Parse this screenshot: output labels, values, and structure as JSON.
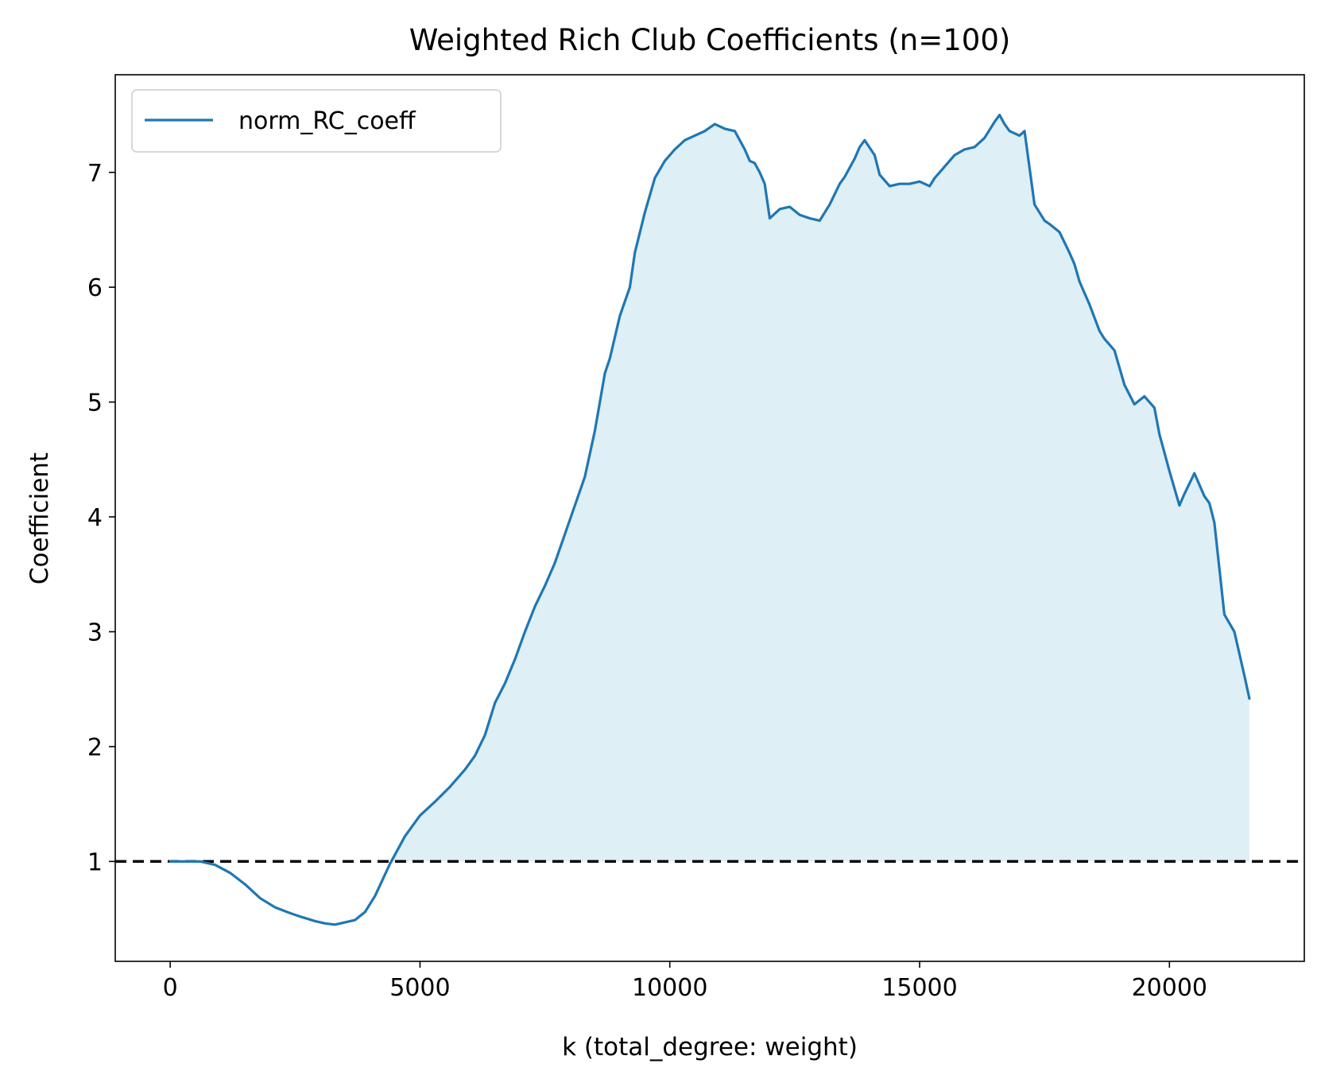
{
  "chart_data": {
    "type": "area",
    "title": "Weighted Rich Club Coefficients (n=100)",
    "xlabel": "k (total_degree: weight)",
    "ylabel": "Coefficient",
    "xlim": [
      -1100,
      22700
    ],
    "ylim": [
      0.13,
      7.85
    ],
    "xticks": [
      0,
      5000,
      10000,
      15000,
      20000
    ],
    "yticks": [
      1,
      2,
      3,
      4,
      5,
      6,
      7
    ],
    "grid": false,
    "legend": {
      "placement": "top-left",
      "entries": [
        "norm_RC_coeff"
      ]
    },
    "colors": {
      "line": "#1f77b4",
      "fill": "#add8e6",
      "reference_line": "#000000"
    },
    "reference_line": {
      "y": 1,
      "style": "dashed"
    },
    "series": [
      {
        "name": "norm_RC_coeff",
        "x": [
          0,
          300,
          600,
          900,
          1200,
          1500,
          1800,
          2100,
          2400,
          2600,
          2900,
          3100,
          3300,
          3500,
          3700,
          3900,
          4100,
          4400,
          4700,
          5000,
          5300,
          5600,
          5900,
          6100,
          6300,
          6500,
          6700,
          6900,
          7100,
          7300,
          7500,
          7700,
          7900,
          8100,
          8300,
          8500,
          8600,
          8700,
          8800,
          9000,
          9200,
          9300,
          9500,
          9700,
          9900,
          10100,
          10300,
          10500,
          10700,
          10900,
          11100,
          11300,
          11500,
          11600,
          11700,
          11800,
          11900,
          12000,
          12200,
          12400,
          12600,
          12800,
          13000,
          13200,
          13400,
          13500,
          13700,
          13800,
          13900,
          14100,
          14200,
          14400,
          14600,
          14800,
          15000,
          15200,
          15300,
          15500,
          15700,
          15900,
          16100,
          16300,
          16500,
          16600,
          16700,
          16800,
          17000,
          17100,
          17300,
          17500,
          17600,
          17800,
          18000,
          18100,
          18200,
          18400,
          18600,
          18700,
          18900,
          19100,
          19300,
          19500,
          19700,
          19800,
          20000,
          20200,
          20300,
          20500,
          20700,
          20800,
          20900,
          21100,
          21300,
          21500,
          21600
        ],
        "values": [
          1.0,
          1.0,
          1.0,
          0.97,
          0.9,
          0.8,
          0.68,
          0.6,
          0.55,
          0.52,
          0.48,
          0.46,
          0.45,
          0.47,
          0.49,
          0.56,
          0.7,
          0.98,
          1.22,
          1.4,
          1.52,
          1.65,
          1.8,
          1.92,
          2.1,
          2.38,
          2.55,
          2.76,
          3.0,
          3.22,
          3.4,
          3.6,
          3.85,
          4.1,
          4.35,
          4.75,
          5.0,
          5.25,
          5.38,
          5.75,
          6.0,
          6.3,
          6.65,
          6.95,
          7.1,
          7.2,
          7.28,
          7.32,
          7.36,
          7.42,
          7.38,
          7.36,
          7.2,
          7.1,
          7.08,
          7.0,
          6.9,
          6.6,
          6.68,
          6.7,
          6.63,
          6.6,
          6.58,
          6.72,
          6.9,
          6.96,
          7.12,
          7.22,
          7.28,
          7.15,
          6.98,
          6.88,
          6.9,
          6.9,
          6.92,
          6.88,
          6.95,
          7.05,
          7.15,
          7.2,
          7.22,
          7.3,
          7.44,
          7.5,
          7.42,
          7.36,
          7.32,
          7.36,
          6.72,
          6.58,
          6.55,
          6.48,
          6.3,
          6.2,
          6.05,
          5.85,
          5.62,
          5.55,
          5.45,
          5.15,
          4.98,
          5.05,
          4.95,
          4.72,
          4.4,
          4.1,
          4.2,
          4.38,
          4.18,
          4.12,
          3.95,
          3.15,
          3.0,
          2.62,
          2.42
        ]
      }
    ]
  }
}
